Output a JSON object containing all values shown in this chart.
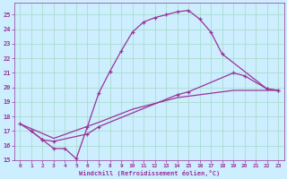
{
  "xlabel": "Windchill (Refroidissement éolien,°C)",
  "bg_color": "#cceeff",
  "grid_color": "#aaddcc",
  "line_color": "#993399",
  "xlim": [
    -0.5,
    23.5
  ],
  "ylim": [
    15,
    25.8
  ],
  "xticks": [
    0,
    1,
    2,
    3,
    4,
    5,
    6,
    7,
    8,
    9,
    10,
    11,
    12,
    13,
    14,
    15,
    16,
    17,
    18,
    19,
    20,
    21,
    22,
    23
  ],
  "yticks": [
    15,
    16,
    17,
    18,
    19,
    20,
    21,
    22,
    23,
    24,
    25
  ],
  "curve1_x": [
    1,
    2,
    3,
    4,
    5,
    6,
    7,
    8,
    9,
    10,
    11,
    12,
    13,
    14,
    15,
    16,
    17,
    18,
    22,
    23
  ],
  "curve1_y": [
    17.0,
    16.4,
    15.8,
    15.8,
    15.1,
    17.3,
    19.6,
    21.1,
    22.5,
    23.8,
    24.5,
    24.8,
    25.0,
    25.2,
    25.3,
    24.7,
    23.8,
    22.3,
    19.9,
    19.8
  ],
  "curve2_x": [
    0,
    1,
    2,
    3,
    6,
    7,
    14,
    15,
    19,
    20,
    22,
    23
  ],
  "curve2_y": [
    17.5,
    17.0,
    16.4,
    16.3,
    16.8,
    17.3,
    19.5,
    19.7,
    21.0,
    20.8,
    19.9,
    19.8
  ],
  "curve3_x": [
    0,
    3,
    7,
    10,
    14,
    19,
    23
  ],
  "curve3_y": [
    17.5,
    16.5,
    17.6,
    18.5,
    19.3,
    19.8,
    19.8
  ]
}
